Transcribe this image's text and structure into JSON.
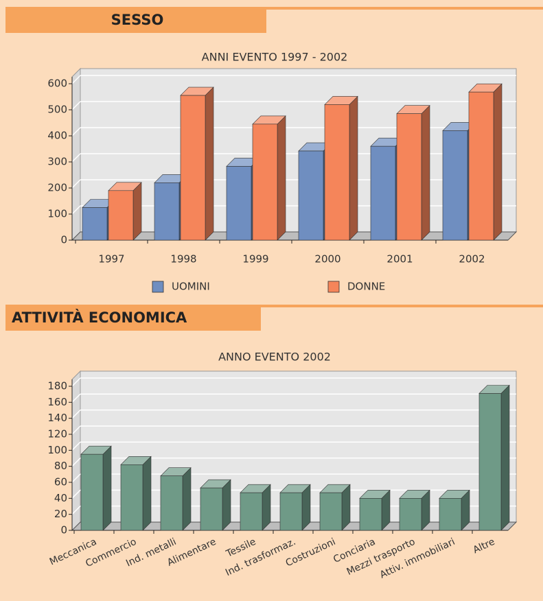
{
  "sections": [
    "SESSO",
    "ATTIVITÀ ECONOMICA"
  ],
  "chart_data": [
    {
      "type": "bar",
      "title": "ANNI EVENTO 1997 - 2002",
      "categories": [
        "1997",
        "1998",
        "1999",
        "2000",
        "2001",
        "2002"
      ],
      "series": [
        {
          "name": "UOMINI",
          "color": "#6f8ec0",
          "values": [
            125,
            220,
            283,
            342,
            360,
            420
          ]
        },
        {
          "name": "DONNE",
          "color": "#f5855a",
          "values": [
            190,
            555,
            445,
            520,
            485,
            568
          ]
        }
      ],
      "ylim": [
        0,
        600
      ],
      "yticks": [
        0,
        100,
        200,
        300,
        400,
        500,
        600
      ],
      "grid": true,
      "legend": "bottom"
    },
    {
      "type": "bar",
      "title": "ANNO EVENTO 2002",
      "categories": [
        "Meccanica",
        "Commercio",
        "Ind. metalli",
        "Alimentare",
        "Tessile",
        "Ind. trasformaz.",
        "Costruzioni",
        "Conciaria",
        "Mezzi trasporto",
        "Attiv. immobiliari",
        "Altre"
      ],
      "values": [
        95,
        82,
        68,
        53,
        47,
        47,
        47,
        40,
        40,
        40,
        171
      ],
      "color": "#6f9a87",
      "ylim": [
        0,
        180
      ],
      "yticks": [
        0,
        20,
        40,
        60,
        80,
        100,
        120,
        140,
        160,
        180
      ],
      "grid": true
    }
  ]
}
